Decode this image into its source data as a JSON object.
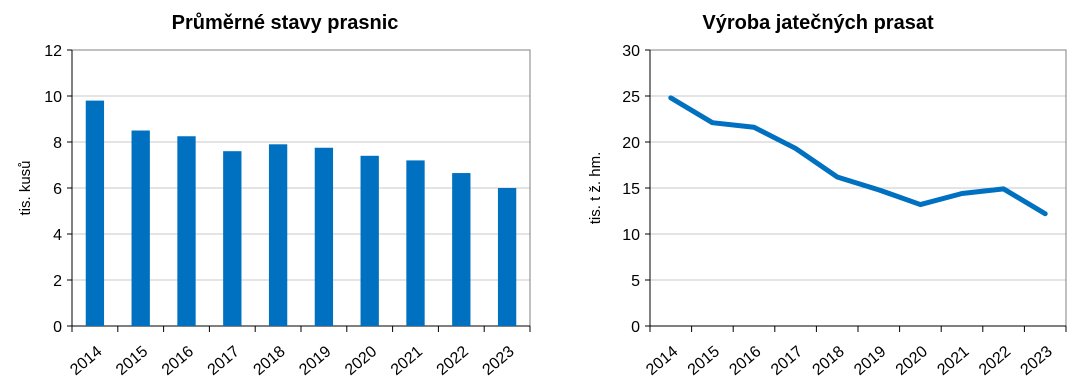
{
  "chart_data": [
    {
      "type": "bar",
      "title": "Průměrné stavy prasnic",
      "xlabel": "",
      "ylabel": "tis. kusů",
      "categories": [
        "2014",
        "2015",
        "2016",
        "2017",
        "2018",
        "2019",
        "2020",
        "2021",
        "2022",
        "2023"
      ],
      "values": [
        9.8,
        8.5,
        8.25,
        7.6,
        7.9,
        7.75,
        7.4,
        7.2,
        6.65,
        6.0
      ],
      "ylim": [
        0,
        12
      ],
      "yticks": [
        0,
        2,
        4,
        6,
        8,
        10,
        12
      ],
      "grid": true,
      "bar_color": "#0070C0"
    },
    {
      "type": "line",
      "title": "Výroba jatečných prasat",
      "xlabel": "",
      "ylabel": "tis. t ž. hm.",
      "categories": [
        "2014",
        "2015",
        "2016",
        "2017",
        "2018",
        "2019",
        "2020",
        "2021",
        "2022",
        "2023"
      ],
      "values": [
        24.8,
        22.1,
        21.6,
        19.3,
        16.2,
        14.8,
        13.2,
        14.4,
        14.9,
        12.2
      ],
      "ylim": [
        0,
        30
      ],
      "yticks": [
        0,
        5,
        10,
        15,
        20,
        25,
        30
      ],
      "grid": true,
      "line_color": "#0070C0"
    }
  ]
}
